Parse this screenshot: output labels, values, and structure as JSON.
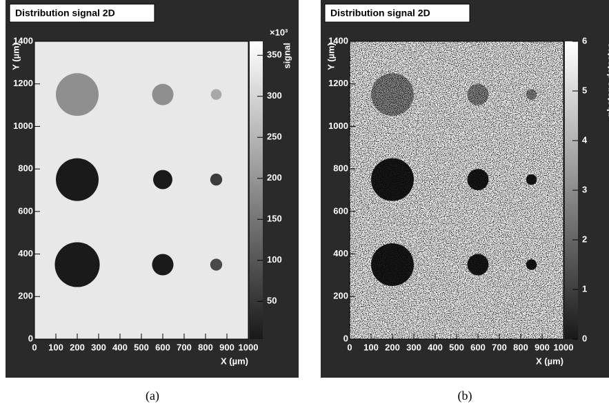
{
  "chart_data": [
    {
      "type": "heatmap",
      "title": "Distribution signal 2D",
      "xlabel": "X (µm)",
      "ylabel": "Y (µm)",
      "zlabel": "signal",
      "zmultiplier": "×10³",
      "xlim": [
        0,
        1000
      ],
      "xticks": [
        0,
        100,
        200,
        300,
        400,
        500,
        600,
        700,
        800,
        900,
        1000
      ],
      "ylim": [
        0,
        1400
      ],
      "yticks": [
        0,
        200,
        400,
        600,
        800,
        1000,
        1200,
        1400
      ],
      "zlim": [
        4000,
        367000
      ],
      "zticks": [
        {
          "value": 50000,
          "label": "50"
        },
        {
          "value": 100000,
          "label": "100"
        },
        {
          "value": 150000,
          "label": "150"
        },
        {
          "value": 200000,
          "label": "200"
        },
        {
          "value": 250000,
          "label": "250"
        },
        {
          "value": 300000,
          "label": "300"
        },
        {
          "value": 350000,
          "label": "350"
        }
      ],
      "background": 330000,
      "noise": false,
      "spots": {
        "x": [
          200,
          600,
          850,
          200,
          600,
          850,
          200,
          600,
          850
        ],
        "y": [
          1150,
          1150,
          1150,
          750,
          750,
          750,
          350,
          350,
          350
        ],
        "r": [
          100,
          50,
          25,
          100,
          45,
          28,
          105,
          50,
          28
        ],
        "values": [
          190000,
          190000,
          230000,
          5000,
          5000,
          60000,
          5000,
          5000,
          80000
        ]
      }
    },
    {
      "type": "heatmap",
      "title": "Distribution signal 2D",
      "xlabel": "X (µm)",
      "ylabel": "Y (µm)",
      "zlabel": "photons detectes",
      "xlim": [
        0,
        1000
      ],
      "xticks": [
        0,
        100,
        200,
        300,
        400,
        500,
        600,
        700,
        800,
        900,
        1000
      ],
      "ylim": [
        0,
        1400
      ],
      "yticks": [
        0,
        200,
        400,
        600,
        800,
        1000,
        1200,
        1400
      ],
      "zlim": [
        0,
        6
      ],
      "zticks": [
        0,
        1,
        2,
        3,
        4,
        5,
        6
      ],
      "background": 6,
      "noise": true,
      "spots": {
        "x": [
          200,
          600,
          850,
          200,
          600,
          850,
          200,
          600,
          850
        ],
        "y": [
          1150,
          1150,
          1150,
          750,
          750,
          750,
          350,
          350,
          350
        ],
        "r": [
          100,
          50,
          25,
          100,
          50,
          25,
          100,
          50,
          25
        ],
        "values": [
          3,
          3,
          3,
          0,
          0,
          0,
          0,
          0,
          0
        ]
      }
    }
  ],
  "captions": [
    "(a)",
    "(b)"
  ]
}
